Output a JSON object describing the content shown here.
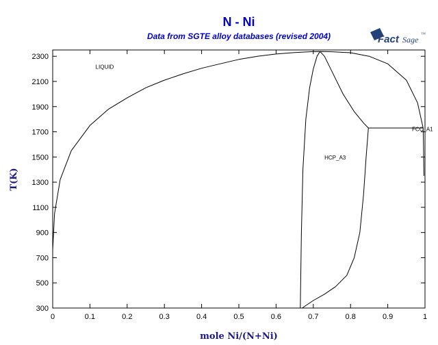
{
  "chart_data": {
    "type": "line",
    "title": "N - Ni",
    "subtitle": "Data from SGTE alloy databases (revised 2004)",
    "xlabel": "mole Ni/(N+Ni)",
    "ylabel": "T(K)",
    "xlim": [
      0,
      1
    ],
    "ylim": [
      300,
      2350
    ],
    "x_ticks": [
      0,
      0.1,
      0.2,
      0.3,
      0.4,
      0.5,
      0.6,
      0.7,
      0.8,
      0.9,
      1
    ],
    "y_ticks": [
      300,
      500,
      700,
      900,
      1100,
      1300,
      1500,
      1700,
      1900,
      2100,
      2300
    ],
    "grid": false,
    "series": [
      {
        "x": [
          0,
          0.005,
          0.02,
          0.05,
          0.1,
          0.15,
          0.2,
          0.25,
          0.3,
          0.35,
          0.4,
          0.45,
          0.5,
          0.55,
          0.6,
          0.65,
          0.7,
          0.72,
          0.75,
          0.8,
          0.85,
          0.9,
          0.95,
          0.98,
          0.995
        ],
        "y": [
          760,
          1050,
          1320,
          1550,
          1750,
          1880,
          1970,
          2050,
          2110,
          2160,
          2205,
          2240,
          2275,
          2300,
          2318,
          2330,
          2337,
          2338,
          2336,
          2328,
          2300,
          2240,
          2110,
          1930,
          1730
        ]
      },
      {
        "x": [
          0.665,
          0.668,
          0.672,
          0.68,
          0.69,
          0.7,
          0.71,
          0.718
        ],
        "y": [
          300,
          900,
          1400,
          1800,
          2050,
          2200,
          2300,
          2338
        ]
      },
      {
        "x": [
          0.718,
          0.73,
          0.75,
          0.78,
          0.81,
          0.835,
          0.848
        ],
        "y": [
          2338,
          2300,
          2180,
          2000,
          1860,
          1770,
          1730
        ]
      },
      {
        "x": [
          0.67,
          0.7,
          0.73,
          0.76,
          0.79,
          0.81,
          0.825,
          0.835,
          0.842,
          0.848
        ],
        "y": [
          300,
          360,
          410,
          470,
          560,
          700,
          900,
          1200,
          1500,
          1730
        ]
      },
      {
        "x": [
          0.848,
          0.995
        ],
        "y": [
          1730,
          1730
        ]
      },
      {
        "x": [
          0.995,
          0.996,
          0.997
        ],
        "y": [
          1730,
          1600,
          1350
        ]
      }
    ],
    "annotations": [
      {
        "text": "LIQUID",
        "x": 0.115,
        "y": 2200
      },
      {
        "text": "HCP_A3",
        "x": 0.73,
        "y": 1480
      },
      {
        "text": "FCC_A1",
        "x": 0.965,
        "y": 1705
      }
    ]
  },
  "logo": {
    "text_fact": "Fact",
    "text_sage": "Sage",
    "mark": "™"
  }
}
